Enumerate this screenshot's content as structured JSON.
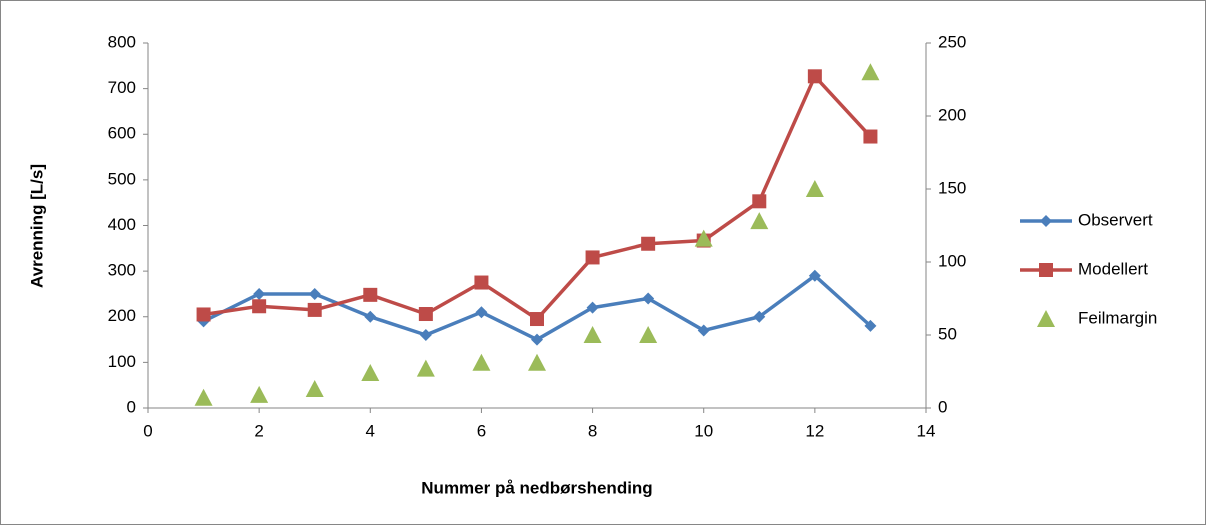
{
  "chart_data": {
    "type": "line",
    "x_label": "Nummer på nedbørshending",
    "y_label": "Avrenning [L/s]",
    "x": [
      1,
      2,
      3,
      4,
      5,
      6,
      7,
      8,
      9,
      10,
      11,
      12,
      13
    ],
    "series": [
      {
        "name": "Observert",
        "type": "line",
        "marker": "diamond",
        "color": "#4a7ebb",
        "values": [
          190,
          250,
          250,
          200,
          160,
          210,
          150,
          220,
          240,
          170,
          200,
          290,
          180
        ]
      },
      {
        "name": "Modellert",
        "type": "line",
        "marker": "square",
        "color": "#be4b48",
        "values": [
          205,
          223,
          215,
          248,
          206,
          275,
          195,
          330,
          360,
          367,
          453,
          727,
          595
        ]
      },
      {
        "name": "Feilmargin",
        "type": "scatter",
        "marker": "triangle",
        "color": "#9bbb59",
        "axis": "y2",
        "values": [
          7,
          9,
          13,
          24,
          27,
          31,
          31,
          50,
          50,
          116,
          128,
          150,
          230
        ]
      }
    ],
    "xlim": [
      0,
      14
    ],
    "xticks": [
      0,
      2,
      4,
      6,
      8,
      10,
      12,
      14
    ],
    "ylim": [
      0,
      800
    ],
    "yticks": [
      0,
      100,
      200,
      300,
      400,
      500,
      600,
      700,
      800
    ],
    "y2lim": [
      0,
      250
    ],
    "y2ticks": [
      0,
      50,
      100,
      150,
      200,
      250
    ],
    "grid": false,
    "legend": "right"
  }
}
